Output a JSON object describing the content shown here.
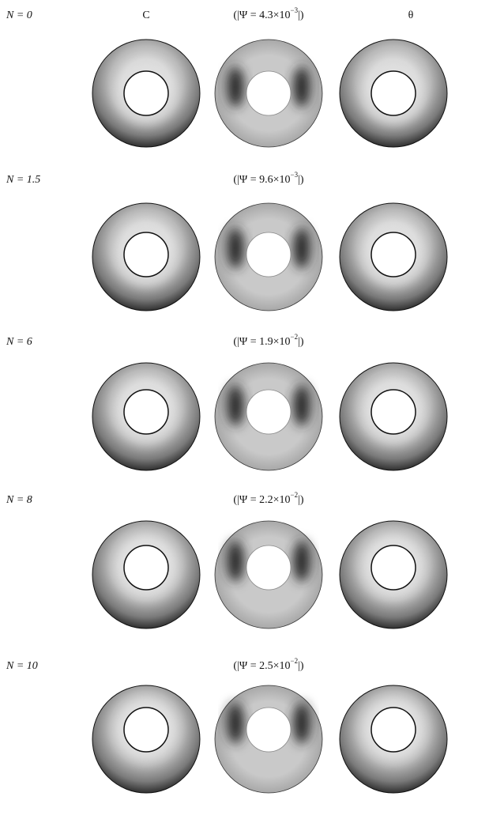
{
  "columns": {
    "left": "C",
    "right": "θ"
  },
  "rows": [
    {
      "n_label": "N = 0",
      "psi_open": "(|Ψ = 4.3×10",
      "psi_exp": "−3",
      "psi_close": "|)"
    },
    {
      "n_label": "N = 1.5",
      "psi_open": "(|Ψ = 9.6×10",
      "psi_exp": "−3",
      "psi_close": "|)"
    },
    {
      "n_label": "N = 6",
      "psi_open": "(|Ψ = 1.9×10",
      "psi_exp": "−2",
      "psi_close": "|)"
    },
    {
      "n_label": "N = 8",
      "psi_open": "(|Ψ = 2.2×10",
      "psi_exp": "−2",
      "psi_close": "|)"
    },
    {
      "n_label": "N = 10",
      "psi_open": "(|Ψ = 2.5×10",
      "psi_exp": "−2",
      "psi_close": "|)"
    }
  ]
}
